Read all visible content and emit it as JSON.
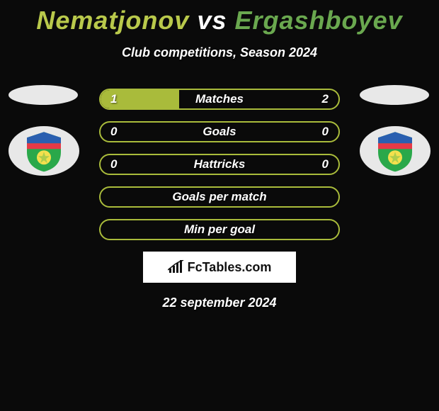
{
  "title": {
    "player1": "Nematjonov",
    "vs": "vs",
    "player2": "Ergashboyev",
    "color1": "#b9c94b",
    "color_vs": "#ffffff",
    "color2": "#6aa84f"
  },
  "subtitle": "Club competitions, Season 2024",
  "rows": [
    {
      "label": "Matches",
      "left": "1",
      "right": "2",
      "border": "#a9bb3b",
      "fill_left": "#a9bb3b",
      "fill_left_pct": 33
    },
    {
      "label": "Goals",
      "left": "0",
      "right": "0",
      "border": "#a9bb3b",
      "fill_left": null,
      "fill_left_pct": 0
    },
    {
      "label": "Hattricks",
      "left": "0",
      "right": "0",
      "border": "#a9bb3b",
      "fill_left": null,
      "fill_left_pct": 0
    },
    {
      "label": "Goals per match",
      "left": "",
      "right": "",
      "border": "#a9bb3b",
      "fill_left": null,
      "fill_left_pct": 0
    },
    {
      "label": "Min per goal",
      "left": "",
      "right": "",
      "border": "#a9bb3b",
      "fill_left": null,
      "fill_left_pct": 0
    }
  ],
  "brand": "FcTables.com",
  "date": "22 september 2024",
  "crest": {
    "stripe_top": "#2a5fb0",
    "stripe_mid": "#e63946",
    "stripe_bot": "#2aa84a",
    "ball": "#f4e04d"
  }
}
